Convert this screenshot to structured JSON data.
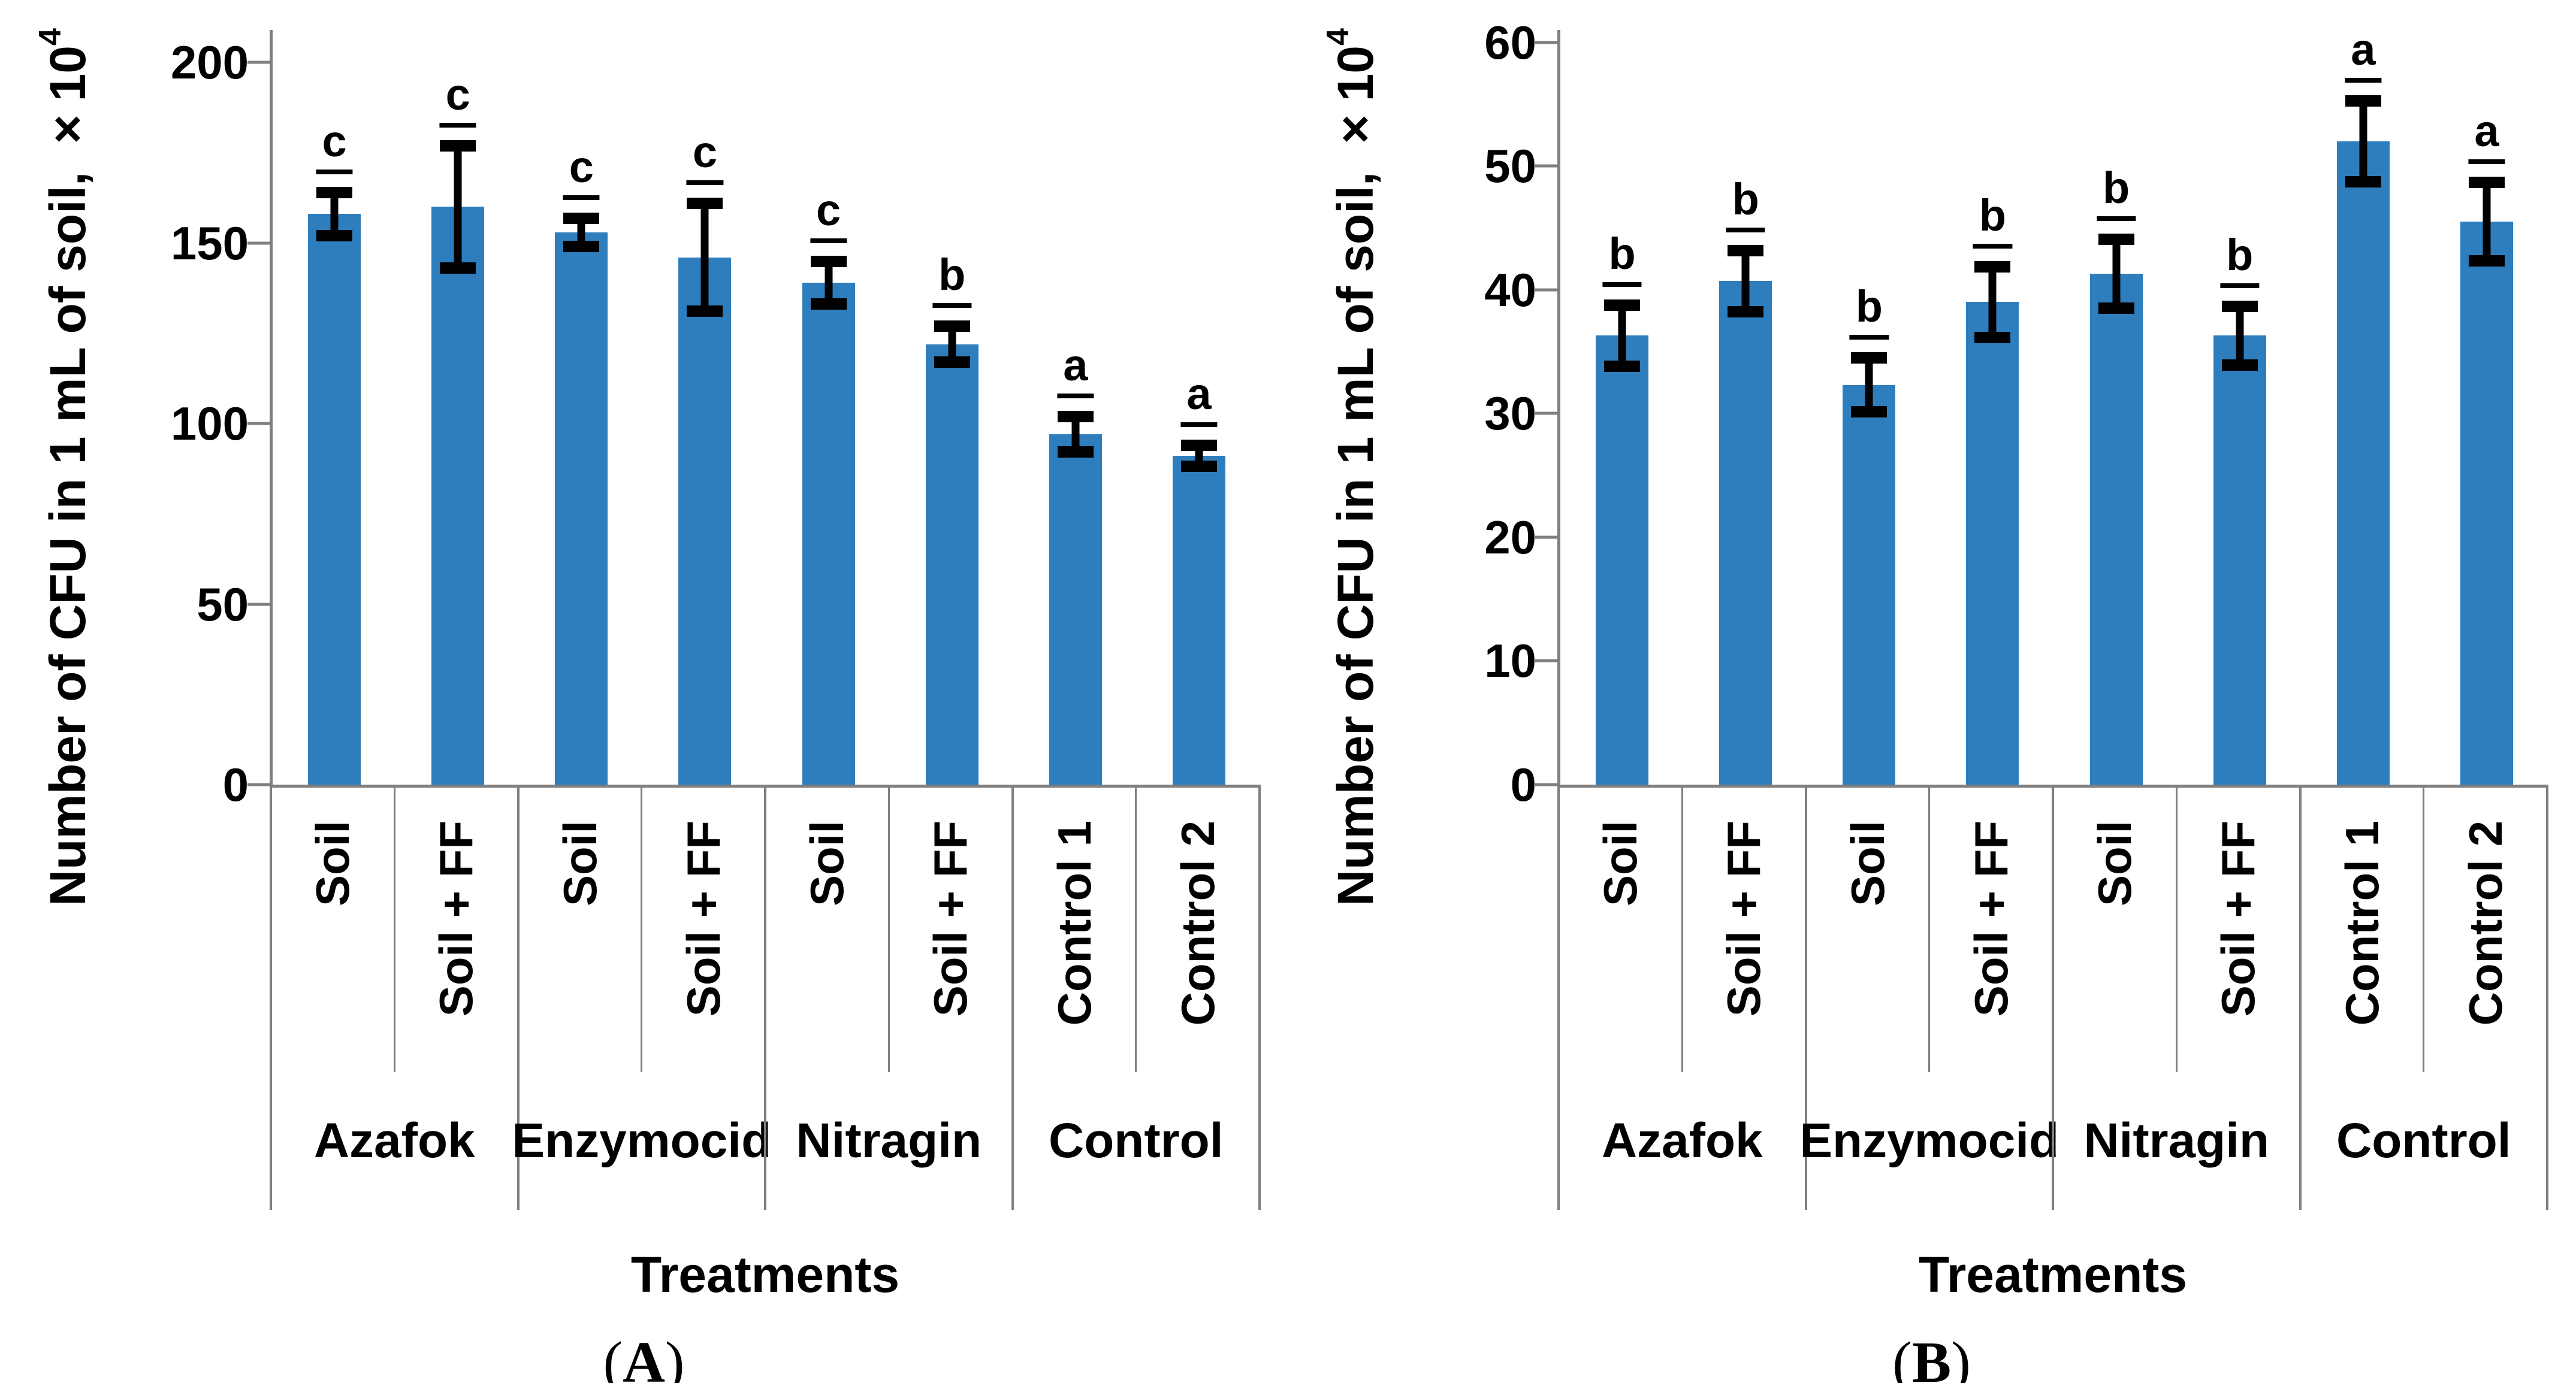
{
  "colors": {
    "bar": "#2E7DBD",
    "axis": "#7F7F7F",
    "error_bar": "#000000",
    "text": "#000000",
    "background": "#FFFFFF"
  },
  "chart_data": [
    {
      "type": "bar",
      "panel": "A",
      "panel_label": "(A)",
      "panel_label_parts": [
        "(",
        "A",
        ")"
      ],
      "title": "",
      "ylabel": "Number of CFU in 1 mL of soil, ×10⁴",
      "ylabel_main": "Number of CFU in 1 mL of soil, ×10",
      "ylabel_sup": "4",
      "xlabel": "Treatments",
      "ylim": [
        0,
        209
      ],
      "yticks": [
        0,
        50,
        100,
        150,
        200
      ],
      "grid": false,
      "legend": false,
      "group_labels": [
        "Azafok",
        "Enzymocid",
        "Nitragin",
        "Control"
      ],
      "categories": [
        "Soil",
        "Soil + FF",
        "Soil",
        "Soil + FF",
        "Soil",
        "Soil + FF",
        "Control 1",
        "Control 2"
      ],
      "values": [
        158,
        160,
        153,
        146,
        139,
        122,
        97,
        91
      ],
      "errors": [
        6,
        17,
        4,
        15,
        6,
        5,
        5,
        3
      ],
      "sig_letters": [
        "c",
        "c",
        "c",
        "c",
        "c",
        "b",
        "a",
        "a"
      ]
    },
    {
      "type": "bar",
      "panel": "B",
      "panel_label": "(B)",
      "panel_label_parts": [
        "(",
        "B",
        ")"
      ],
      "title": "",
      "ylabel": "Number of CFU in 1 mL of soil, ×10⁴",
      "ylabel_main": "Number of CFU in 1 mL of soil, ×10",
      "ylabel_sup": "4",
      "xlabel": "Treatments",
      "ylim": [
        0,
        61
      ],
      "yticks": [
        0,
        10,
        20,
        30,
        40,
        50,
        60
      ],
      "grid": false,
      "legend": false,
      "group_labels": [
        "Azafok",
        "Enzymocid",
        "Nitragin",
        "Control"
      ],
      "categories": [
        "Soil",
        "Soil + FF",
        "Soil",
        "Soil + FF",
        "Soil",
        "Soil + FF",
        "Control 1",
        "Control 2"
      ],
      "values": [
        36.3,
        40.7,
        32.3,
        39,
        41.3,
        36.3,
        52,
        45.5
      ],
      "errors": [
        2.5,
        2.5,
        2.2,
        2.9,
        2.8,
        2.4,
        3.3,
        3.2
      ],
      "sig_letters": [
        "b",
        "b",
        "b",
        "b",
        "b",
        "b",
        "a",
        "a"
      ]
    }
  ]
}
